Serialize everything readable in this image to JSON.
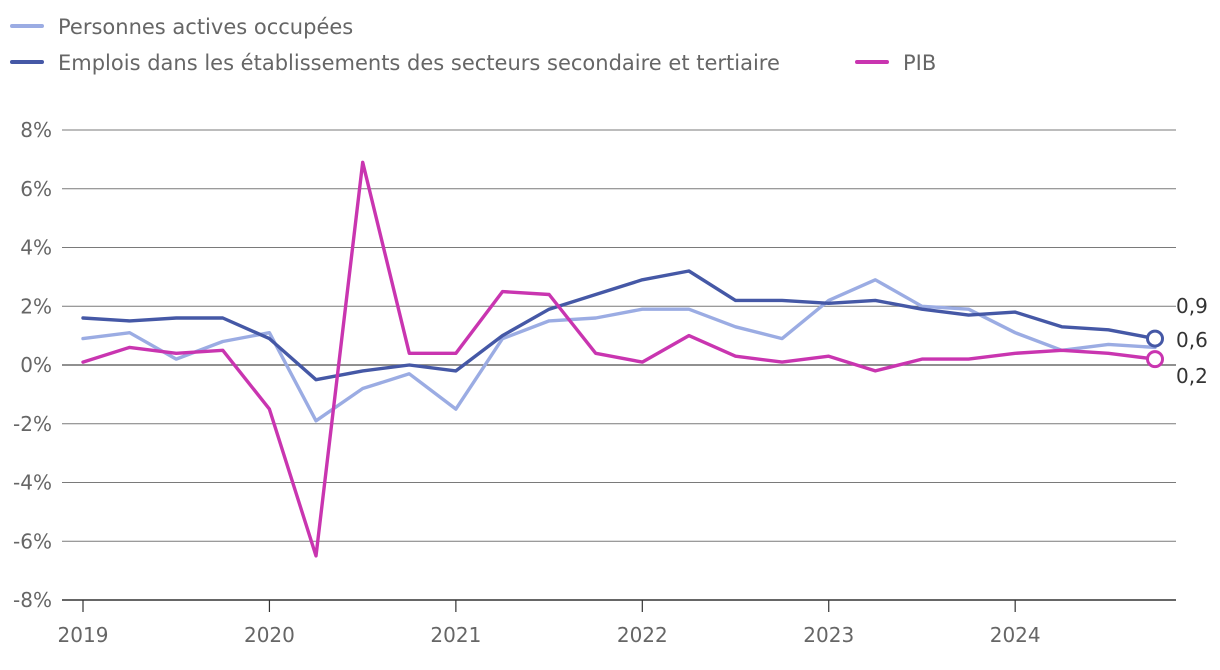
{
  "chart_data": {
    "type": "line",
    "title": "",
    "xlabel": "",
    "ylabel": "",
    "x_ticks": [
      "2019",
      "2020",
      "2021",
      "2022",
      "2023",
      "2024"
    ],
    "x_range": [
      2019.0,
      2024.75
    ],
    "y_ticks": [
      "8%",
      "6%",
      "4%",
      "2%",
      "0%",
      "-2%",
      "-4%",
      "-6%",
      "-8%"
    ],
    "ylim": [
      -8,
      8
    ],
    "grid": "horizontal",
    "legend_position": "top-left",
    "quarters": [
      "2019T1",
      "2019T2",
      "2019T3",
      "2019T4",
      "2020T1",
      "2020T2",
      "2020T3",
      "2020T4",
      "2021T1",
      "2021T2",
      "2021T3",
      "2021T4",
      "2022T1",
      "2022T2",
      "2022T3",
      "2022T4",
      "2023T1",
      "2023T2",
      "2023T3",
      "2023T4",
      "2024T1",
      "2024T2",
      "2024T3",
      "2024T4"
    ],
    "series": [
      {
        "name": "Personnes actives occupées",
        "color": "#9BACE3",
        "values": [
          0.9,
          1.1,
          0.2,
          0.8,
          1.1,
          -1.9,
          -0.8,
          -0.3,
          -1.5,
          0.9,
          1.5,
          1.6,
          1.9,
          1.9,
          1.3,
          0.9,
          2.2,
          2.9,
          2.0,
          1.9,
          1.1,
          0.5,
          0.7,
          0.6
        ],
        "end_label": "0,6"
      },
      {
        "name": "Emplois dans les établissements des secteurs secondaire et tertiaire",
        "color": "#4558A6",
        "values": [
          1.6,
          1.5,
          1.6,
          1.6,
          0.9,
          -0.5,
          -0.2,
          0.0,
          -0.2,
          1.0,
          1.9,
          2.4,
          2.9,
          3.2,
          2.2,
          2.2,
          2.1,
          2.2,
          1.9,
          1.7,
          1.8,
          1.3,
          1.2,
          0.9
        ],
        "end_label": "0,9"
      },
      {
        "name": "PIB",
        "color": "#C935B0",
        "values": [
          0.1,
          0.6,
          0.4,
          0.5,
          -1.5,
          -6.5,
          6.9,
          0.4,
          0.4,
          2.5,
          2.4,
          0.4,
          0.1,
          1.0,
          0.3,
          0.1,
          0.3,
          -0.2,
          0.2,
          0.2,
          0.4,
          0.5,
          0.4,
          0.2
        ],
        "end_label": "0,2"
      }
    ]
  }
}
